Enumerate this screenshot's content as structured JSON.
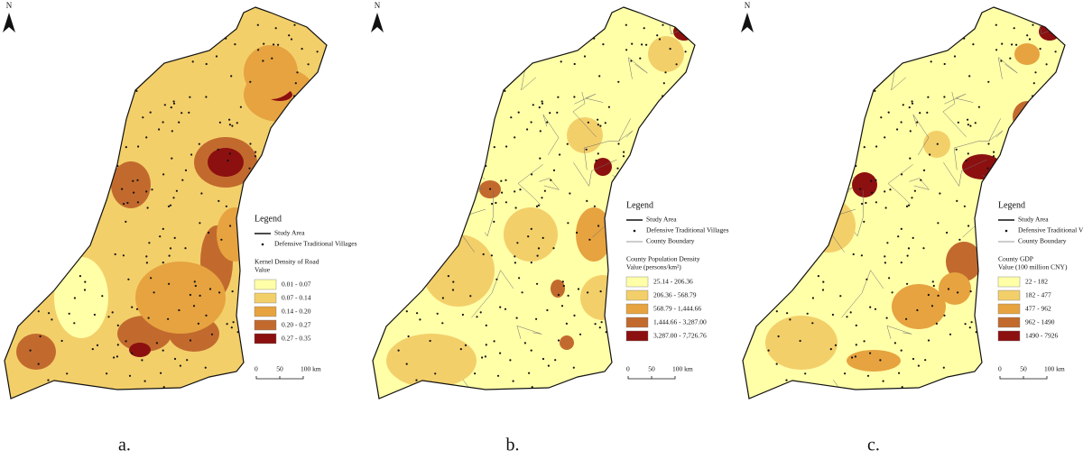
{
  "panels": [
    {
      "label": "a.",
      "north": "N",
      "legend": {
        "title": "Legend",
        "items": [
          "Study Area",
          "Defensive Traditional Villages"
        ],
        "layer_title": "Kernel Density of Road",
        "layer_subtitle": "Value",
        "classes": [
          {
            "label": "0.01 - 0.07",
            "color": "#ffffa8"
          },
          {
            "label": "0.07 - 0.14",
            "color": "#f3cf6a"
          },
          {
            "label": "0.14 - 0.20",
            "color": "#e6a33f"
          },
          {
            "label": "0.20 - 0.27",
            "color": "#c26a2e"
          },
          {
            "label": "0.27 - 0.35",
            "color": "#8c1010"
          }
        ]
      },
      "scale": [
        "0",
        "50",
        "100 km"
      ]
    },
    {
      "label": "b.",
      "north": "N",
      "legend": {
        "title": "Legend",
        "items": [
          "Study Area",
          "Defensive Traditional Villages",
          "County Boundary"
        ],
        "layer_title": "County Population Density",
        "layer_subtitle": "Value (persons/km²)",
        "classes": [
          {
            "label": "25.14 - 206.36",
            "color": "#ffffa8"
          },
          {
            "label": "206.36 - 568.79",
            "color": "#f3cf6a"
          },
          {
            "label": "568.79 - 1,444.66",
            "color": "#e6a33f"
          },
          {
            "label": "1,444.66 - 3,287.00",
            "color": "#c26a2e"
          },
          {
            "label": "3,287.00 - 7,726.76",
            "color": "#8c1010"
          }
        ]
      },
      "scale": [
        "0",
        "50",
        "100 km"
      ]
    },
    {
      "label": "c.",
      "north": "N",
      "legend": {
        "title": "Legend",
        "items": [
          "Study Area",
          "Defensive Traditional Villages",
          "County Boundary"
        ],
        "layer_title": "County GDP",
        "layer_subtitle": "Value (100 million CNY)",
        "classes": [
          {
            "label": "22 - 182",
            "color": "#ffffa8"
          },
          {
            "label": "182 - 477",
            "color": "#f3cf6a"
          },
          {
            "label": "477 - 962",
            "color": "#e6a33f"
          },
          {
            "label": "962 - 1490",
            "color": "#c26a2e"
          },
          {
            "label": "1490 - 7926",
            "color": "#8c1010"
          }
        ]
      },
      "scale": [
        "0",
        "50",
        "100 km"
      ]
    }
  ]
}
